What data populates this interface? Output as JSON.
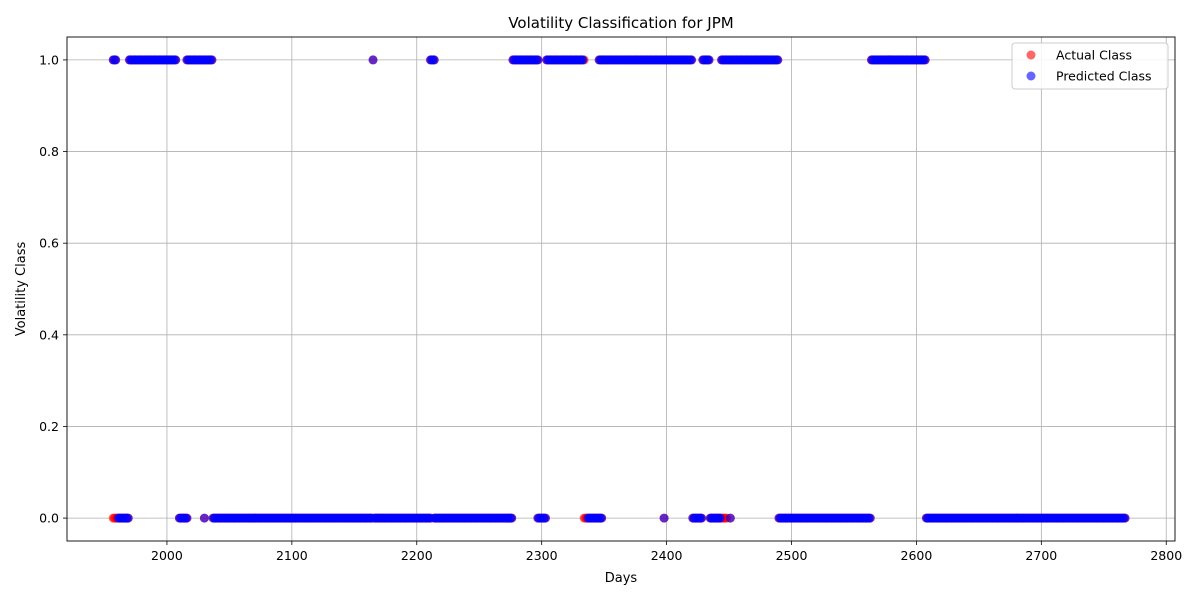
{
  "chart_data": {
    "type": "scatter",
    "title": "Volatility Classification for JPM",
    "xlabel": "Days",
    "ylabel": "Volatility Class",
    "xlim": [
      1920,
      2807
    ],
    "ylim": [
      -0.05,
      1.05
    ],
    "xticks": [
      2000,
      2100,
      2200,
      2300,
      2400,
      2500,
      2600,
      2700,
      2800
    ],
    "yticks": [
      0.0,
      0.2,
      0.4,
      0.6,
      0.8,
      1.0
    ],
    "xtick_labels": [
      "2000",
      "2100",
      "2200",
      "2300",
      "2400",
      "2500",
      "2600",
      "2700",
      "2800"
    ],
    "ytick_labels": [
      "0.0",
      "0.2",
      "0.4",
      "0.6",
      "0.8",
      "1.0"
    ],
    "grid": true,
    "legend_position": "top-right",
    "series": [
      {
        "name": "Actual Class",
        "color": "#ff0000",
        "opacity": 0.6,
        "segments": [
          [
            1957,
            1959,
            1
          ],
          [
            1957,
            1969,
            0
          ],
          [
            1970,
            2007,
            1
          ],
          [
            2010,
            2016,
            0
          ],
          [
            2016,
            2036,
            1
          ],
          [
            2030,
            2030,
            0
          ],
          [
            2037,
            2164,
            0
          ],
          [
            2165,
            2165,
            1
          ],
          [
            2166,
            2211,
            0
          ],
          [
            2211,
            2214,
            1
          ],
          [
            2214,
            2276,
            0
          ],
          [
            2277,
            2297,
            1
          ],
          [
            2297,
            2303,
            0
          ],
          [
            2304,
            2334,
            1
          ],
          [
            2334,
            2348,
            0
          ],
          [
            2346,
            2420,
            1
          ],
          [
            2398,
            2398,
            0
          ],
          [
            2421,
            2428,
            0
          ],
          [
            2429,
            2434,
            1
          ],
          [
            2435,
            2448,
            0
          ],
          [
            2444,
            2489,
            1
          ],
          [
            2451,
            2451,
            0
          ],
          [
            2490,
            2563,
            0
          ],
          [
            2564,
            2607,
            1
          ],
          [
            2608,
            2767,
            0
          ]
        ]
      },
      {
        "name": "Predicted Class",
        "color": "#0000ff",
        "opacity": 0.6,
        "segments": [
          [
            1957,
            1959,
            1
          ],
          [
            1961,
            1969,
            0
          ],
          [
            1970,
            2007,
            1
          ],
          [
            2010,
            2016,
            0
          ],
          [
            2016,
            2036,
            1
          ],
          [
            2030,
            2030,
            0
          ],
          [
            2037,
            2164,
            0
          ],
          [
            2165,
            2165,
            1
          ],
          [
            2166,
            2211,
            0
          ],
          [
            2211,
            2214,
            1
          ],
          [
            2214,
            2276,
            0
          ],
          [
            2277,
            2297,
            1
          ],
          [
            2297,
            2303,
            0
          ],
          [
            2304,
            2333,
            1
          ],
          [
            2337,
            2348,
            0
          ],
          [
            2346,
            2420,
            1
          ],
          [
            2398,
            2398,
            0
          ],
          [
            2421,
            2428,
            0
          ],
          [
            2429,
            2434,
            1
          ],
          [
            2435,
            2443,
            0
          ],
          [
            2444,
            2489,
            1
          ],
          [
            2451,
            2451,
            0
          ],
          [
            2490,
            2563,
            0
          ],
          [
            2564,
            2607,
            1
          ],
          [
            2608,
            2767,
            0
          ]
        ]
      }
    ]
  }
}
